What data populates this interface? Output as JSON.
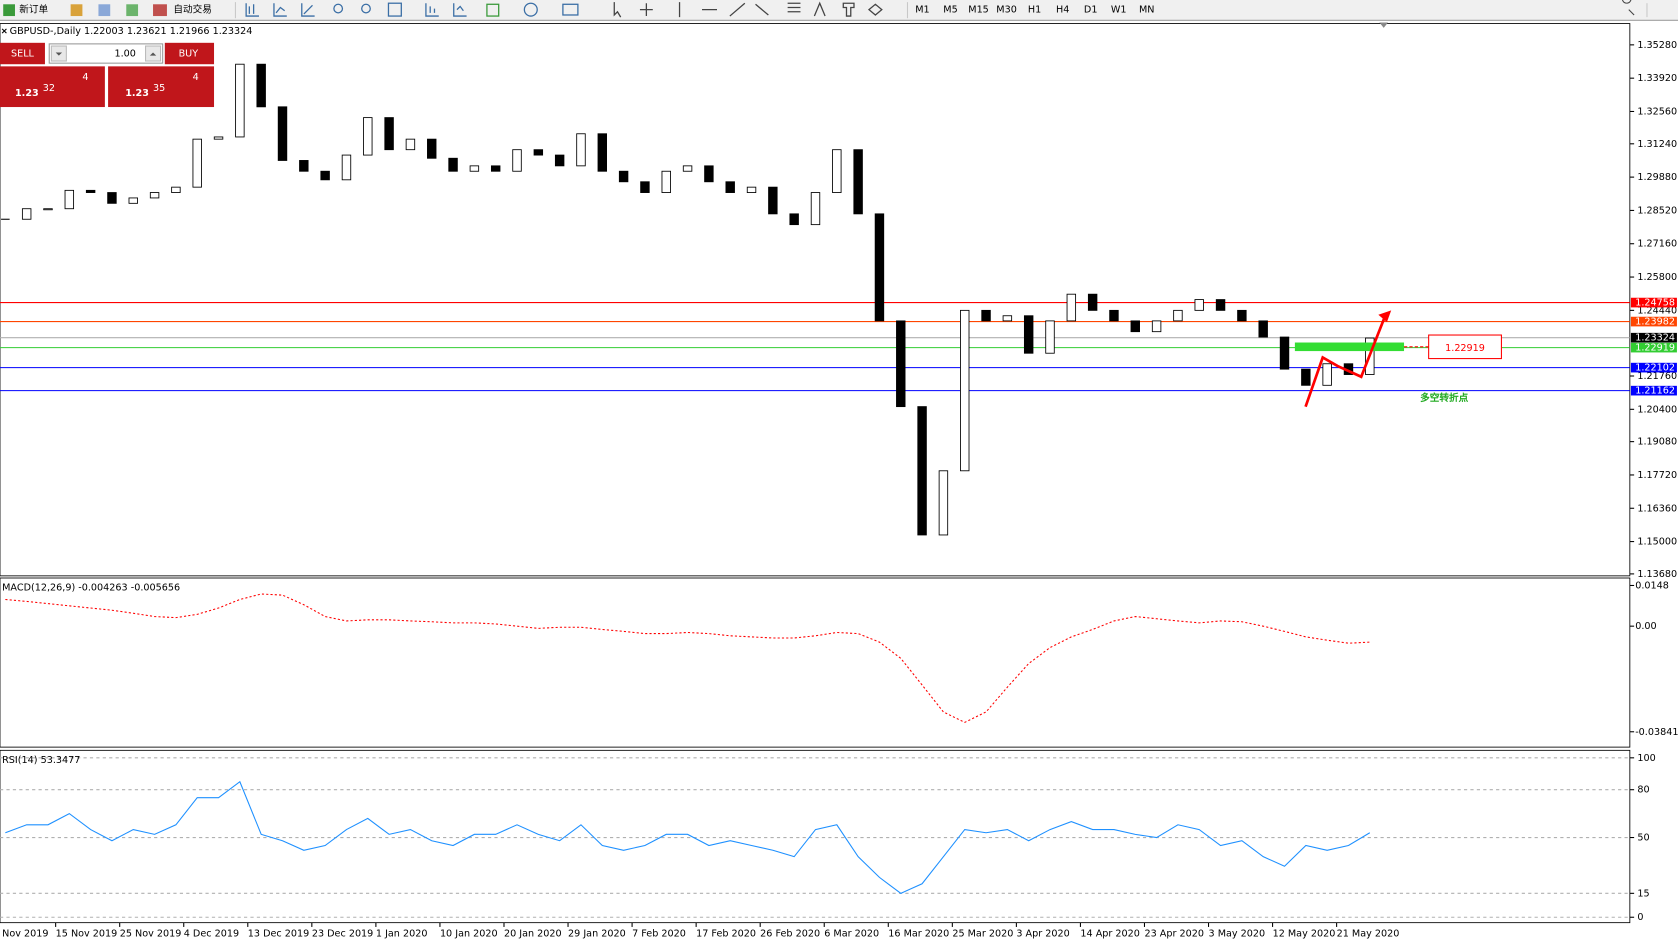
{
  "toolbar": {
    "new_order": "新订单",
    "auto_trading": "自动交易",
    "timeframes": [
      "M1",
      "M5",
      "M15",
      "M30",
      "H1",
      "H4",
      "D1",
      "W1",
      "MN"
    ]
  },
  "trade_panel": {
    "sell": "SELL",
    "lots": "1.00",
    "buy": "BUY",
    "sell_price": [
      "1.23",
      "32",
      "4"
    ],
    "buy_price": [
      "1.23",
      "35",
      "4"
    ]
  },
  "chart": {
    "header": "GBPUSD-,Daily  1.22003 1.23621 1.21966 1.23324",
    "ylim": [
      1.136,
      1.3615
    ],
    "yticks": [
      {
        "value": 1.3528,
        "label": "1.35280"
      },
      {
        "value": 1.3392,
        "label": "1.33920"
      },
      {
        "value": 1.3256,
        "label": "1.32560"
      },
      {
        "value": 1.3124,
        "label": "1.31240"
      },
      {
        "value": 1.2988,
        "label": "1.29880"
      },
      {
        "value": 1.2852,
        "label": "1.28520"
      },
      {
        "value": 1.2716,
        "label": "1.27160"
      },
      {
        "value": 1.258,
        "label": "1.25800"
      },
      {
        "value": 1.2444,
        "label": "1.24440"
      },
      {
        "value": 1.2176,
        "label": "1.21760"
      },
      {
        "value": 1.204,
        "label": "1.20400"
      },
      {
        "value": 1.1908,
        "label": "1.19080"
      },
      {
        "value": 1.1772,
        "label": "1.17720"
      },
      {
        "value": 1.1636,
        "label": "1.16360"
      },
      {
        "value": 1.15,
        "label": "1.15000"
      },
      {
        "value": 1.1368,
        "label": "1.13680"
      }
    ],
    "closes": [
      1.2816,
      1.2859,
      1.2859,
      1.2934,
      1.2925,
      1.2881,
      1.2903,
      1.2925,
      1.2947,
      1.3143,
      1.3152,
      1.3449,
      1.3275,
      1.3056,
      1.3012,
      1.2977,
      1.3078,
      1.3231,
      1.31,
      1.3143,
      1.3065,
      1.3012,
      1.3034,
      1.3012,
      1.31,
      1.3078,
      1.3034,
      1.3165,
      1.3012,
      1.2969,
      1.2925,
      1.3012,
      1.3034,
      1.2969,
      1.2925,
      1.2947,
      1.2838,
      1.2794,
      1.2925,
      1.31,
      1.2838,
      1.2401,
      1.2051,
      1.1527,
      1.1789,
      1.2444,
      1.2401,
      1.2422,
      1.2269,
      1.2401,
      1.251,
      1.2444,
      1.2401,
      1.2357,
      1.2401,
      1.2444,
      1.2488,
      1.2444,
      1.2401,
      1.2335,
      1.2204,
      1.2138,
      1.2226,
      1.2182,
      1.2331
    ],
    "levels": [
      {
        "value": 1.24758,
        "color": "#ff0000"
      },
      {
        "value": 1.23982,
        "color": "#ff4500"
      },
      {
        "value": 1.22919,
        "color": "#32cd32"
      },
      {
        "value": 1.22102,
        "color": "#0000ff"
      },
      {
        "value": 1.21162,
        "color": "#0000ff"
      }
    ],
    "current_price": 1.23324
  },
  "annotation": {
    "text": "多空转折点"
  },
  "macd": {
    "label": "MACD(12,26,9) -0.004263 -0.005656",
    "ylim": [
      -0.044,
      0.01752
    ],
    "yticks": [
      0.0148,
      {
        "value": 0,
        "label": "0.00"
      },
      -0.038415
    ],
    "signal": [
      0.0097,
      0.009,
      0.0082,
      0.0074,
      0.0066,
      0.0058,
      0.0047,
      0.0035,
      0.0031,
      0.0043,
      0.0066,
      0.0097,
      0.0117,
      0.0113,
      0.0078,
      0.0035,
      0.0019,
      0.0023,
      0.0023,
      0.0019,
      0.0016,
      0.0012,
      0.0012,
      0.0008,
      0,
      -0.0008,
      -0.0004,
      -0.0004,
      -0.0012,
      -0.0019,
      -0.0027,
      -0.0027,
      -0.0023,
      -0.0027,
      -0.0035,
      -0.0039,
      -0.0043,
      -0.0043,
      -0.0035,
      -0.0023,
      -0.0027,
      -0.0058,
      -0.0117,
      -0.0214,
      -0.0312,
      -0.035,
      -0.0312,
      -0.0222,
      -0.0136,
      -0.0078,
      -0.0039,
      -0.0012,
      0.0019,
      0.0035,
      0.0027,
      0.0019,
      0.0012,
      0.0019,
      0.0016,
      0,
      -0.0019,
      -0.0039,
      -0.0051,
      -0.0062,
      -0.0058
    ]
  },
  "rsi": {
    "label": "RSI(14) 53.3477",
    "ylim": [
      -3.4,
      104.7
    ],
    "yticks": [
      100,
      80,
      50,
      15,
      0
    ],
    "values": [
      53,
      58,
      58,
      65,
      55,
      48,
      55,
      52,
      58,
      75,
      75,
      85,
      52,
      48,
      42,
      45,
      55,
      62,
      52,
      55,
      48,
      45,
      52,
      52,
      58,
      52,
      48,
      58,
      45,
      42,
      45,
      52,
      52,
      45,
      48,
      45,
      42,
      38,
      55,
      58,
      38,
      25,
      15,
      21,
      38,
      55,
      53,
      55,
      48,
      55,
      60,
      55,
      55,
      52,
      50,
      58,
      55,
      45,
      48,
      38,
      32,
      45,
      42,
      45,
      53
    ]
  },
  "dates": [
    "Nov 2019",
    "15 Nov 2019",
    "25 Nov 2019",
    "4 Dec 2019",
    "13 Dec 2019",
    "23 Dec 2019",
    "1 Jan 2020",
    "10 Jan 2020",
    "20 Jan 2020",
    "29 Jan 2020",
    "7 Feb 2020",
    "17 Feb 2020",
    "26 Feb 2020",
    "6 Mar 2020",
    "16 Mar 2020",
    "25 Mar 2020",
    "3 Apr 2020",
    "14 Apr 2020",
    "23 Apr 2020",
    "3 May 2020",
    "12 May 2020",
    "21 May 2020"
  ]
}
